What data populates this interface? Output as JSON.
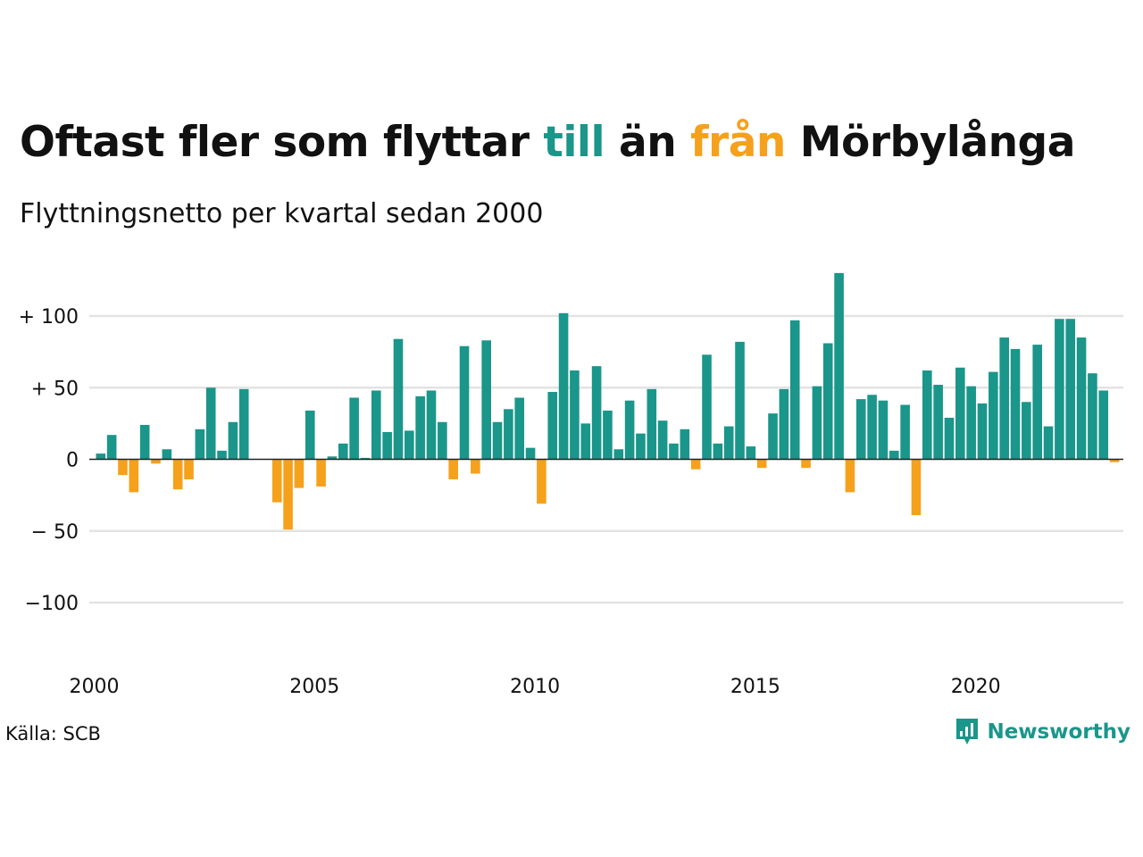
{
  "title": {
    "part1": "Oftast fler som flyttar ",
    "part2": "till",
    "part3": " än ",
    "part4": "från",
    "part5": " Mörbylånga"
  },
  "subtitle": "Flyttningsnetto per kvartal sedan 2000",
  "source": "Källa: SCB",
  "brand": "Newsworthy",
  "colors": {
    "positive": "#1a968a",
    "negative": "#f5a11c",
    "grid": "#e3e3e3",
    "zero": "#222222",
    "text": "#111111"
  },
  "chart_data": {
    "type": "bar",
    "start_year": 2000,
    "quarters_per_year": 4,
    "values": [
      4,
      17,
      -11,
      -23,
      24,
      -3,
      7,
      -21,
      -14,
      21,
      50,
      6,
      26,
      49,
      0,
      0,
      -30,
      -49,
      -20,
      34,
      -19,
      2,
      11,
      43,
      1,
      48,
      19,
      84,
      20,
      44,
      48,
      26,
      -14,
      79,
      -10,
      83,
      26,
      35,
      43,
      8,
      -31,
      47,
      102,
      62,
      25,
      65,
      34,
      7,
      41,
      18,
      49,
      27,
      11,
      21,
      -7,
      73,
      11,
      23,
      82,
      9,
      -6,
      32,
      49,
      97,
      -6,
      51,
      81,
      130,
      -23,
      42,
      45,
      41,
      6,
      38,
      -39,
      62,
      52,
      29,
      64,
      51,
      39,
      61,
      85,
      77,
      40,
      80,
      23,
      98,
      98,
      85,
      60,
      48,
      -2
    ],
    "ylim": [
      -140,
      140
    ],
    "yticks": [
      100,
      50,
      0,
      -50,
      -100
    ],
    "ytick_labels": [
      "+ 100",
      "+  50",
      "0",
      "− 50",
      "−100"
    ],
    "xticks": [
      2000,
      2005,
      2010,
      2015,
      2020
    ],
    "xtick_labels": [
      "2000",
      "2005",
      "2010",
      "2015",
      "2020"
    ],
    "grid": true
  }
}
